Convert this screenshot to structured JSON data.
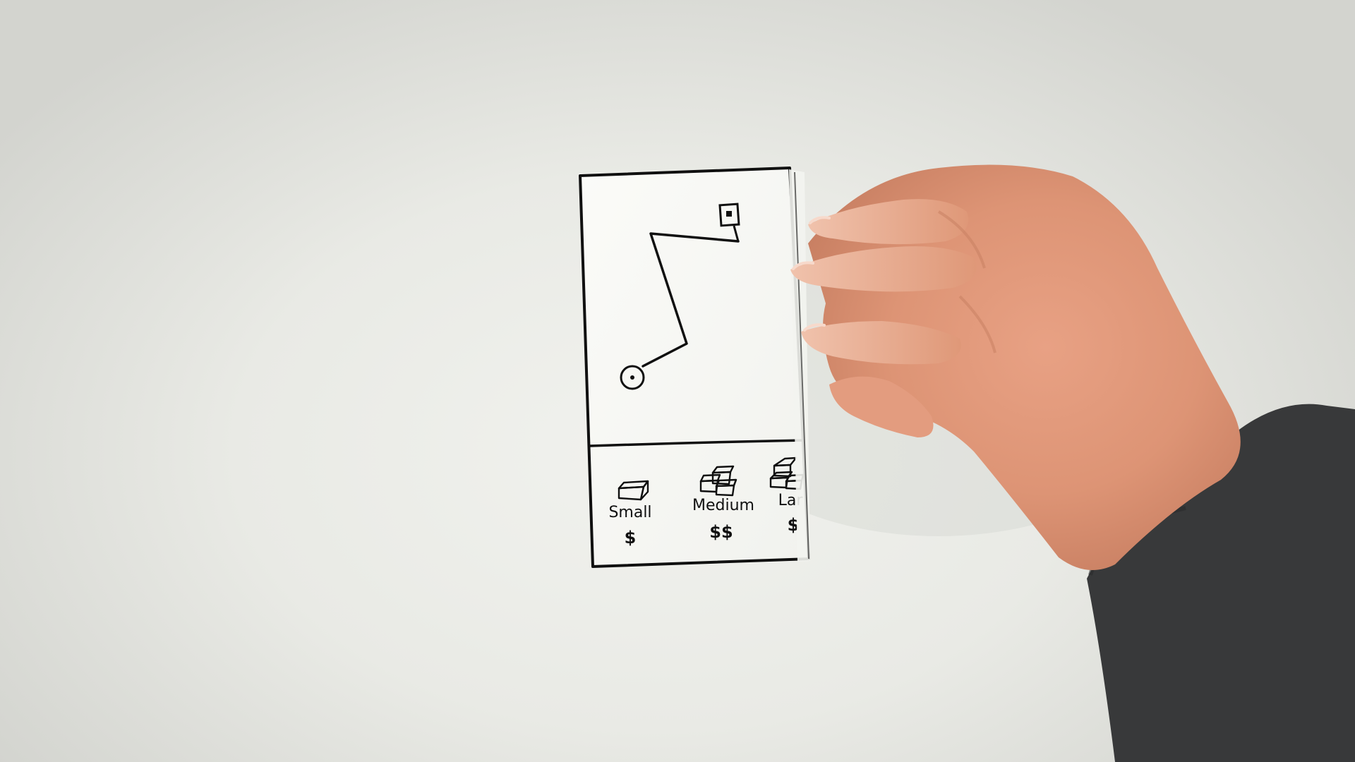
{
  "prototype": {
    "type": "paper-prototype",
    "map": {
      "route_icon_start": "circle-dot-icon",
      "route_icon_end": "square-pin-icon"
    },
    "options": [
      {
        "label": "Small",
        "price": "$",
        "icon": "small-box-icon"
      },
      {
        "label": "Medium",
        "price": "$$",
        "icon": "stacked-boxes-icon"
      },
      {
        "label": "Lar",
        "price": "$",
        "icon": "large-boxes-icon"
      }
    ]
  },
  "colors": {
    "ink": "#101010",
    "paper": "#f9f9f6",
    "skin": "#e6a285",
    "sleeve": "#38393a"
  }
}
